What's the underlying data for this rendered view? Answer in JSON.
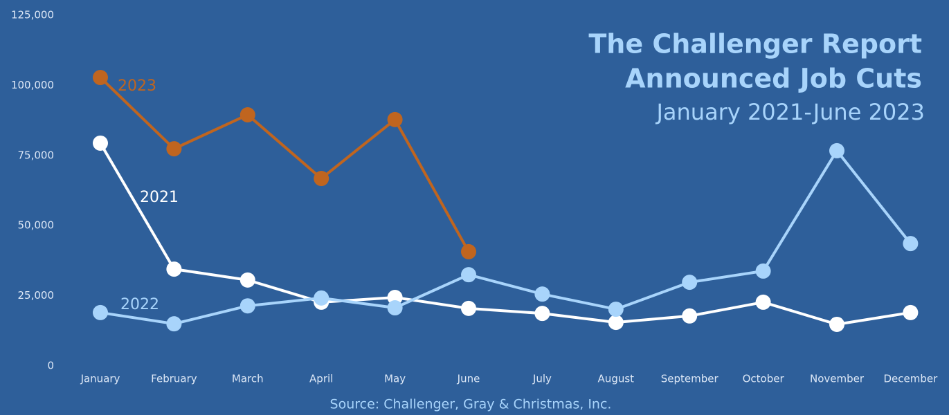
{
  "chart_data": {
    "type": "line",
    "title": [
      "The Challenger Report",
      "Announced Job Cuts"
    ],
    "subtitle": "January 2021-June 2023",
    "source": "Source: Challenger, Gray & Christmas, Inc.",
    "categories": [
      "January",
      "February",
      "March",
      "April",
      "May",
      "June",
      "July",
      "August",
      "September",
      "October",
      "November",
      "December"
    ],
    "series": [
      {
        "name": "2021",
        "color": "#ffffff",
        "values": [
          79400,
          34500,
          30600,
          22700,
          24400,
          20500,
          18700,
          15500,
          17800,
          22700,
          14800,
          19000
        ]
      },
      {
        "name": "2022",
        "color": "#a8d4fb",
        "values": [
          19000,
          15000,
          21400,
          24200,
          20700,
          32500,
          25600,
          20200,
          29800,
          33800,
          76700,
          43600
        ]
      },
      {
        "name": "2023",
        "color": "#c0651f",
        "values": [
          102800,
          77400,
          89500,
          66800,
          87800,
          40700,
          null,
          null,
          null,
          null,
          null,
          null
        ]
      }
    ],
    "ylim": [
      0,
      125000
    ],
    "yticks": [
      0,
      {
        "value": 25000,
        "label": "25,000"
      },
      {
        "value": 50000,
        "label": "50,000"
      },
      {
        "value": 75000,
        "label": "75,000"
      },
      {
        "value": 100000,
        "label": "100,000"
      },
      {
        "value": 125000,
        "label": "125,000"
      }
    ],
    "grid": false
  }
}
